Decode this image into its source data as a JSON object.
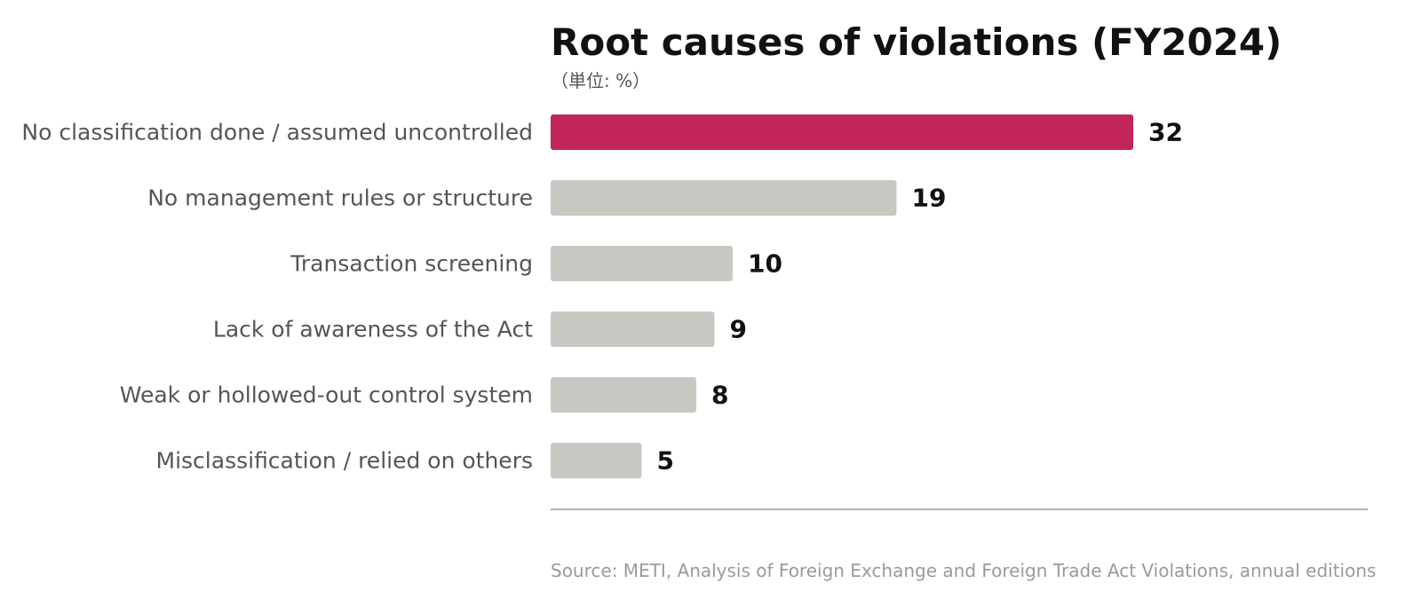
{
  "chart_data": {
    "type": "bar",
    "orientation": "horizontal",
    "title": "Root causes of violations (FY2024)",
    "subtitle": "（単位: %）",
    "categories": [
      "No classification done / assumed uncontrolled",
      "No management rules or structure",
      "Transaction screening",
      "Lack of awareness of the Act",
      "Weak or hollowed-out control system",
      "Misclassification / relied on others"
    ],
    "values": [
      32,
      19,
      10,
      9,
      8,
      5
    ],
    "xlim": [
      0,
      45
    ],
    "grid": false,
    "source": "Source: METI, Analysis of Foreign Exchange and Foreign Trade Act Violations, annual editions",
    "colors": {
      "highlight": "#c2255c",
      "bar": "#c8c8c3",
      "axis": "#999999"
    }
  }
}
